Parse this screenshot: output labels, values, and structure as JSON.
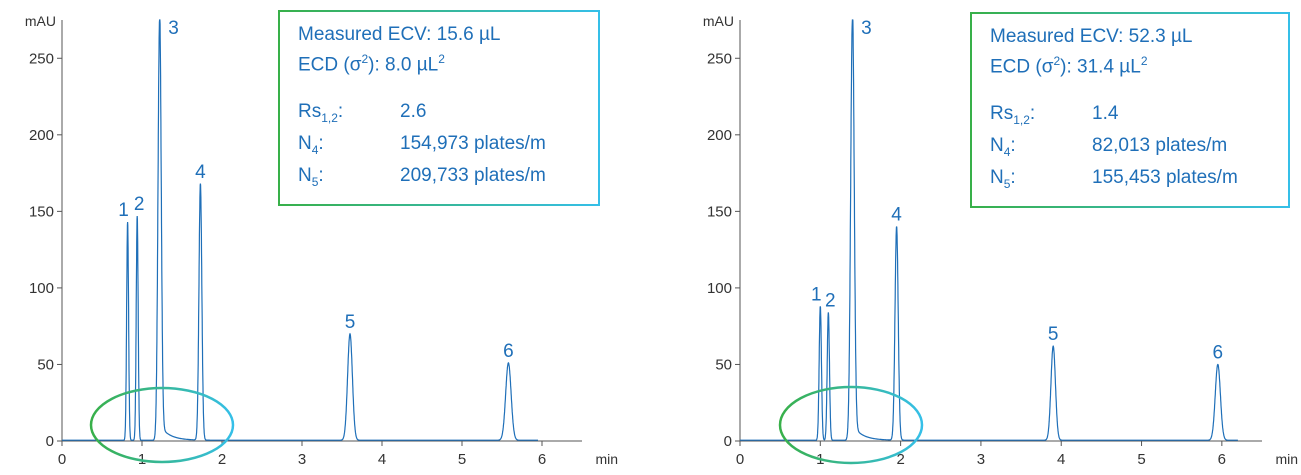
{
  "colors": {
    "trace": "#1f6fb8",
    "axis": "#555555",
    "box_start": "#38b049",
    "box_end": "#35bfe8"
  },
  "chart_data": [
    {
      "type": "line",
      "xlabel": "min",
      "ylabel": "mAU",
      "xlim": [
        0,
        6.5
      ],
      "ylim": [
        0,
        275
      ],
      "x_ticks": [
        0,
        1,
        2,
        3,
        4,
        5,
        6
      ],
      "y_ticks": [
        0,
        50,
        100,
        150,
        200,
        250
      ],
      "grid": false,
      "baseline": 0.5,
      "trace_end": 5.95,
      "peaks": [
        {
          "label": "1",
          "x": 0.82,
          "y": 143
        },
        {
          "label": "2",
          "x": 0.94,
          "y": 147
        },
        {
          "label": "3",
          "x": 1.22,
          "y": 275
        },
        {
          "label": "4",
          "x": 1.73,
          "y": 168
        },
        {
          "label": "5",
          "x": 3.6,
          "y": 70
        },
        {
          "label": "6",
          "x": 5.58,
          "y": 51
        }
      ],
      "annotation": {
        "ecv": "Measured ECV: 15.6 µL",
        "ecd_prefix": "ECD (σ",
        "ecd_mid": "): 8.0 µL",
        "rs_key": "Rs",
        "rs_sub": "1,2",
        "rs_value": "2.6",
        "n4_key": "N",
        "n4_sub": "4",
        "n4_value": "154,973 plates/m",
        "n5_key": "N",
        "n5_sub": "5",
        "n5_value": "209,733 plates/m"
      }
    },
    {
      "type": "line",
      "xlabel": "min",
      "ylabel": "mAU",
      "xlim": [
        0,
        6.5
      ],
      "ylim": [
        0,
        275
      ],
      "x_ticks": [
        0,
        1,
        2,
        3,
        4,
        5,
        6
      ],
      "y_ticks": [
        0,
        50,
        100,
        150,
        200,
        250
      ],
      "grid": false,
      "baseline": 0.5,
      "trace_end": 6.2,
      "peaks": [
        {
          "label": "1",
          "x": 1.0,
          "y": 88
        },
        {
          "label": "2",
          "x": 1.1,
          "y": 84
        },
        {
          "label": "3",
          "x": 1.4,
          "y": 275
        },
        {
          "label": "4",
          "x": 1.95,
          "y": 140
        },
        {
          "label": "5",
          "x": 3.9,
          "y": 62
        },
        {
          "label": "6",
          "x": 5.95,
          "y": 50
        }
      ],
      "annotation": {
        "ecv": "Measured ECV: 52.3 µL",
        "ecd_prefix": "ECD (σ",
        "ecd_mid": "): 31.4 µL",
        "rs_key": "Rs",
        "rs_sub": "1,2",
        "rs_value": "1.4",
        "n4_key": "N",
        "n4_sub": "4",
        "n4_value": "82,013 plates/m",
        "n5_key": "N",
        "n5_sub": "5",
        "n5_value": "155,453 plates/m"
      }
    }
  ],
  "superscript_2": "2"
}
